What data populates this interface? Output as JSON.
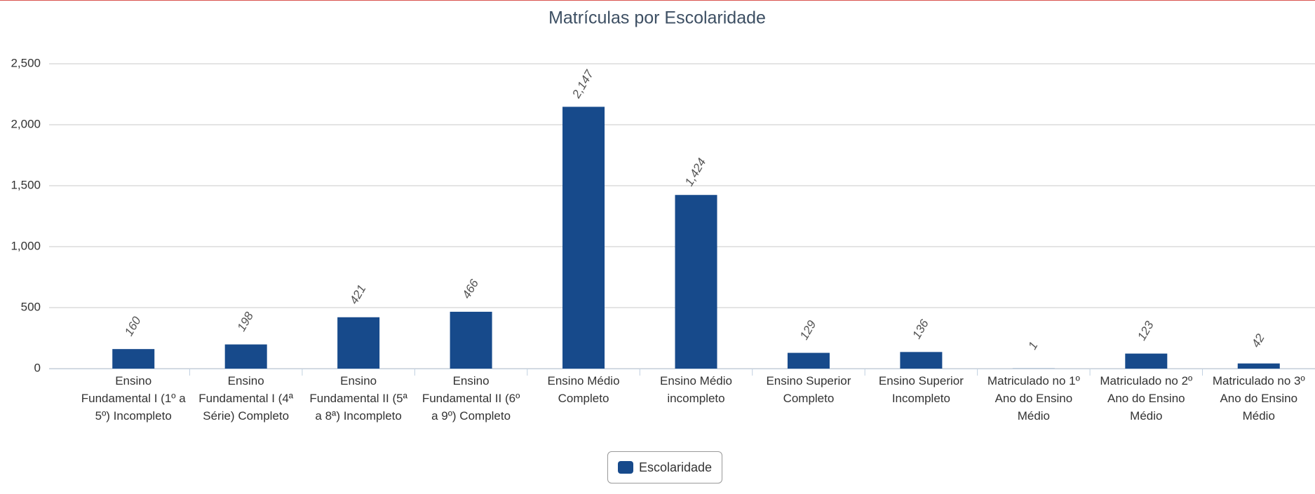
{
  "chart_data": {
    "type": "bar",
    "title": "Matrículas por Escolaridade",
    "categories": [
      "Ensino Fundamental I (1º a 5º) Incompleto",
      "Ensino Fundamental I (4ª Série) Completo",
      "Ensino Fundamental II (5ª a 8ª) Incompleto",
      "Ensino Fundamental II (6º a 9º) Completo",
      "Ensino Médio Completo",
      "Ensino Médio incompleto",
      "Ensino Superior Completo",
      "Ensino Superior Incompleto",
      "Matriculado no 1º Ano do Ensino Médio",
      "Matriculado no 2º Ano do Ensino Médio",
      "Matriculado no 3º Ano do Ensino Médio"
    ],
    "series": [
      {
        "name": "Escolaridade",
        "color": "#174a8b",
        "values": [
          160,
          198,
          421,
          466,
          2147,
          1424,
          129,
          136,
          1,
          123,
          42
        ],
        "value_labels": [
          "160",
          "198",
          "421",
          "466",
          "2,147",
          "1,424",
          "129",
          "136",
          "1",
          "123",
          "42"
        ]
      }
    ],
    "ylim": [
      0,
      2500
    ],
    "yticks": [
      0,
      500,
      {
        "value": 1000,
        "label": "1,000"
      },
      {
        "value": 1500,
        "label": "1,500"
      },
      {
        "value": 2000,
        "label": "2,000"
      },
      {
        "value": 2500,
        "label": "2,500"
      }
    ],
    "grid": true,
    "legend": "bottom"
  }
}
